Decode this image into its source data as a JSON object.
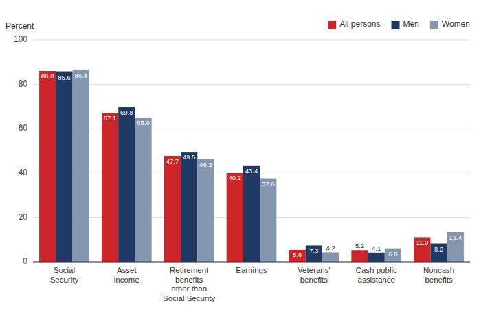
{
  "chart_data": {
    "type": "bar",
    "y_label": "Percent",
    "categories": [
      "Social\nSecurity",
      "Asset\nincome",
      "Retirement\nbenefits\nother than\nSocial Security",
      "Earnings",
      "Veterans'\nbenefits",
      "Cash public\nassistance",
      "Noncash\nbenefits"
    ],
    "series": [
      {
        "name": "All persons",
        "color": "#cc2529",
        "values": [
          86.0,
          67.1,
          47.7,
          40.2,
          5.6,
          5.2,
          11.0
        ],
        "value_labels": [
          "86.0",
          "67.1",
          "47.7",
          "40.2",
          "5.6",
          "5.2",
          "11.0"
        ]
      },
      {
        "name": "Men",
        "color": "#1f3864",
        "values": [
          85.6,
          69.8,
          49.5,
          43.4,
          7.3,
          4.1,
          8.2
        ],
        "value_labels": [
          "85.6",
          "69.8",
          "49.5",
          "43.4",
          "7.3",
          "4.1",
          "8.2"
        ]
      },
      {
        "name": "Women",
        "color": "#8496b0",
        "values": [
          86.4,
          65.0,
          46.2,
          37.6,
          4.2,
          6.0,
          13.4
        ],
        "value_labels": [
          "86.4",
          "65.0",
          "46.2",
          "37.6",
          "4.2",
          "6.0",
          "13.4"
        ]
      }
    ],
    "ylim": [
      0,
      100
    ],
    "yticks": [
      0,
      20,
      40,
      60,
      80,
      100
    ],
    "grid": true,
    "legend": "upper right",
    "data_labels": true
  }
}
